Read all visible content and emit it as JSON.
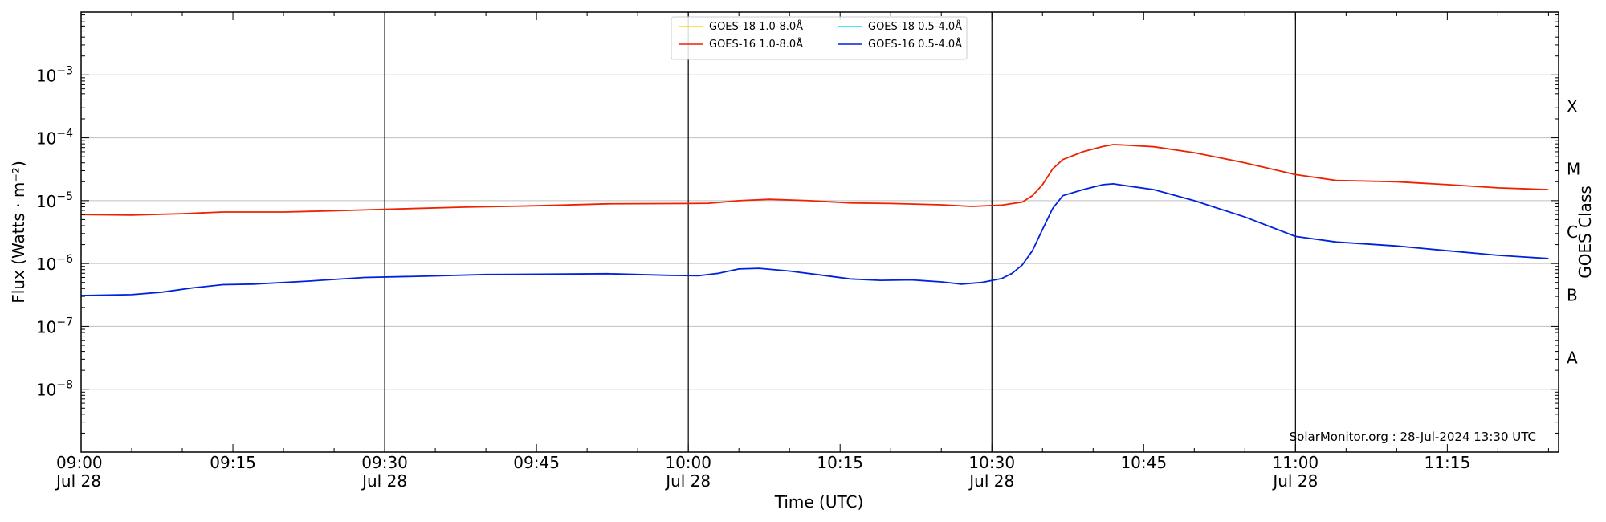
{
  "chart_data": {
    "type": "line",
    "xlabel": "Time (UTC)",
    "ylabel": "Flux (Watts · m⁻²)",
    "ylabel_right": "GOES Class",
    "credit": "SolarMonitor.org : 28-Jul-2024 13:30 UTC",
    "x_unit": "minutes after 09:00 UTC, 28-Jul-2024",
    "xlim": [
      0,
      146
    ],
    "ylim": [
      1e-09,
      0.01
    ],
    "y_scale": "log",
    "grid": "horizontal at decades; vertical lines at half-hours",
    "legend_position": "top-center",
    "x_ticks": [
      {
        "x": 0,
        "time": "09:00",
        "date": "Jul 28"
      },
      {
        "x": 15,
        "time": "09:15",
        "date": ""
      },
      {
        "x": 30,
        "time": "09:30",
        "date": "Jul 28"
      },
      {
        "x": 45,
        "time": "09:45",
        "date": ""
      },
      {
        "x": 60,
        "time": "10:00",
        "date": "Jul 28"
      },
      {
        "x": 75,
        "time": "10:15",
        "date": ""
      },
      {
        "x": 90,
        "time": "10:30",
        "date": "Jul 28"
      },
      {
        "x": 105,
        "time": "10:45",
        "date": ""
      },
      {
        "x": 120,
        "time": "11:00",
        "date": "Jul 28"
      },
      {
        "x": 135,
        "time": "11:15",
        "date": ""
      }
    ],
    "y_ticks": [
      {
        "exp": -3,
        "label": "10",
        "sup": "−3"
      },
      {
        "exp": -4,
        "label": "10",
        "sup": "−4"
      },
      {
        "exp": -5,
        "label": "10",
        "sup": "−5"
      },
      {
        "exp": -6,
        "label": "10",
        "sup": "−6"
      },
      {
        "exp": -7,
        "label": "10",
        "sup": "−7"
      },
      {
        "exp": -8,
        "label": "10",
        "sup": "−8"
      }
    ],
    "goes_classes": [
      {
        "label": "X",
        "y": 0.000316
      },
      {
        "label": "M",
        "y": 3.16e-05
      },
      {
        "label": "C",
        "y": 3.16e-06
      },
      {
        "label": "B",
        "y": 3.16e-07
      },
      {
        "label": "A",
        "y": 3.16e-08
      }
    ],
    "series": [
      {
        "name": "GOES-18 1.0-8.0Å",
        "color": "#ffd700",
        "points": []
      },
      {
        "name": "GOES-18 0.5-4.0Å",
        "color": "#00e5ee",
        "points": []
      },
      {
        "name": "GOES-16 1.0-8.0Å",
        "color": "#ee2200",
        "points": [
          [
            0,
            6e-06
          ],
          [
            5,
            5.9e-06
          ],
          [
            10,
            6.2e-06
          ],
          [
            14,
            6.6e-06
          ],
          [
            20,
            6.6e-06
          ],
          [
            25,
            6.9e-06
          ],
          [
            30,
            7.3e-06
          ],
          [
            38,
            7.9e-06
          ],
          [
            45,
            8.3e-06
          ],
          [
            52,
            8.9e-06
          ],
          [
            60,
            9e-06
          ],
          [
            62,
            9.1e-06
          ],
          [
            65,
            1e-05
          ],
          [
            68,
            1.05e-05
          ],
          [
            72,
            1e-05
          ],
          [
            76,
            9.2e-06
          ],
          [
            80,
            9e-06
          ],
          [
            85,
            8.6e-06
          ],
          [
            88,
            8.1e-06
          ],
          [
            91,
            8.5e-06
          ],
          [
            93,
            9.5e-06
          ],
          [
            94,
            1.2e-05
          ],
          [
            95,
            1.8e-05
          ],
          [
            96,
            3.2e-05
          ],
          [
            97,
            4.5e-05
          ],
          [
            99,
            6e-05
          ],
          [
            101,
            7.3e-05
          ],
          [
            102,
            7.8e-05
          ],
          [
            103,
            7.7e-05
          ],
          [
            106,
            7.2e-05
          ],
          [
            110,
            5.8e-05
          ],
          [
            115,
            4e-05
          ],
          [
            120,
            2.6e-05
          ],
          [
            124,
            2.1e-05
          ],
          [
            130,
            2e-05
          ],
          [
            135,
            1.8e-05
          ],
          [
            140,
            1.6e-05
          ],
          [
            145,
            1.5e-05
          ]
        ]
      },
      {
        "name": "GOES-16 0.5-4.0Å",
        "color": "#0022dd",
        "points": [
          [
            0,
            3.1e-07
          ],
          [
            5,
            3.2e-07
          ],
          [
            8,
            3.5e-07
          ],
          [
            11,
            4.1e-07
          ],
          [
            14,
            4.6e-07
          ],
          [
            17,
            4.7e-07
          ],
          [
            22,
            5.2e-07
          ],
          [
            28,
            6e-07
          ],
          [
            34,
            6.3e-07
          ],
          [
            40,
            6.7e-07
          ],
          [
            47,
            6.8e-07
          ],
          [
            52,
            6.9e-07
          ],
          [
            58,
            6.5e-07
          ],
          [
            61,
            6.4e-07
          ],
          [
            63,
            7e-07
          ],
          [
            65,
            8.2e-07
          ],
          [
            67,
            8.4e-07
          ],
          [
            70,
            7.6e-07
          ],
          [
            73,
            6.6e-07
          ],
          [
            76,
            5.7e-07
          ],
          [
            79,
            5.4e-07
          ],
          [
            82,
            5.5e-07
          ],
          [
            85,
            5.1e-07
          ],
          [
            87,
            4.7e-07
          ],
          [
            89,
            5e-07
          ],
          [
            91,
            5.8e-07
          ],
          [
            92,
            7e-07
          ],
          [
            93,
            9.5e-07
          ],
          [
            94,
            1.6e-06
          ],
          [
            95,
            3.5e-06
          ],
          [
            96,
            7.5e-06
          ],
          [
            97,
            1.2e-05
          ],
          [
            99,
            1.5e-05
          ],
          [
            101,
            1.8e-05
          ],
          [
            102,
            1.85e-05
          ],
          [
            103,
            1.75e-05
          ],
          [
            106,
            1.5e-05
          ],
          [
            110,
            1e-05
          ],
          [
            115,
            5.5e-06
          ],
          [
            120,
            2.7e-06
          ],
          [
            124,
            2.2e-06
          ],
          [
            130,
            1.9e-06
          ],
          [
            135,
            1.6e-06
          ],
          [
            140,
            1.35e-06
          ],
          [
            145,
            1.2e-06
          ]
        ]
      }
    ],
    "legend_entries": [
      {
        "name": "GOES-18 1.0-8.0Å",
        "color": "#ffd700"
      },
      {
        "name": "GOES-18 0.5-4.0Å",
        "color": "#00e5ee"
      },
      {
        "name": "GOES-16 1.0-8.0Å",
        "color": "#ee2200"
      },
      {
        "name": "GOES-16 0.5-4.0Å",
        "color": "#0022dd"
      }
    ]
  }
}
